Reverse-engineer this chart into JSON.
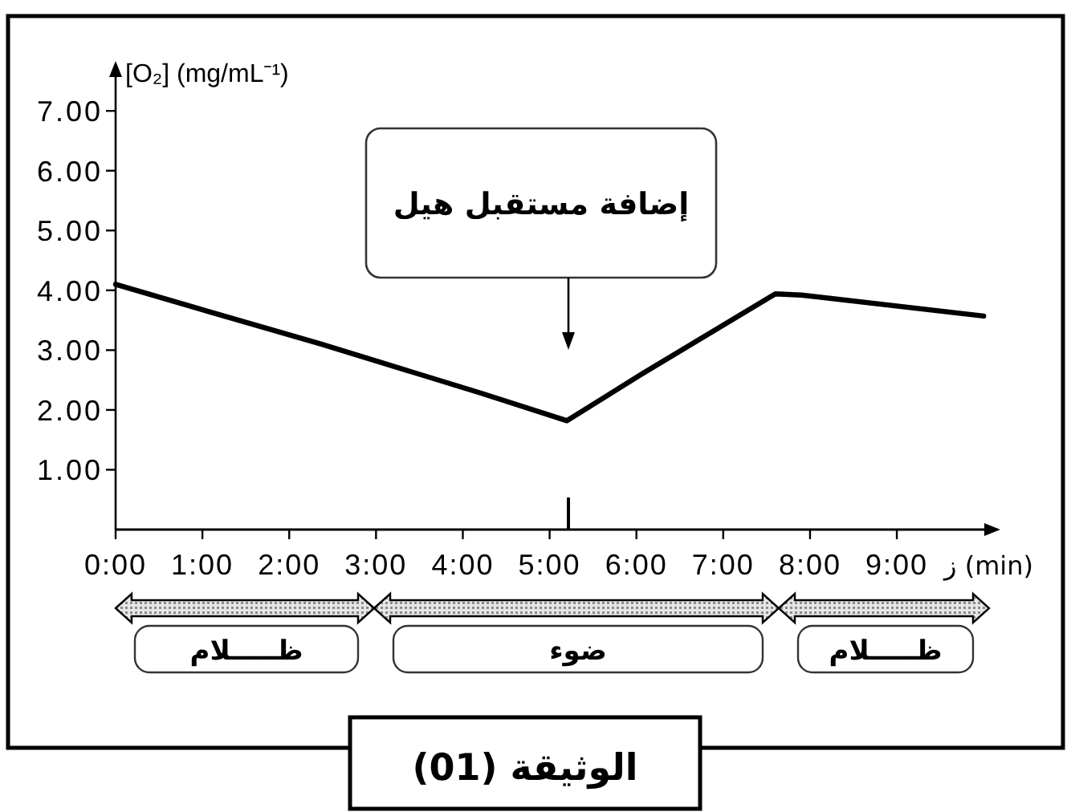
{
  "chart_data": {
    "type": "line",
    "ylabel": "[O₂] (mg/mL⁻¹)",
    "xlabel": "ز (min)",
    "x": [
      0,
      1.13,
      2.37,
      4.21,
      5.2,
      6.06,
      7.6,
      7.9,
      10.0
    ],
    "series": [
      {
        "color": "#000000",
        "values": [
          4.1,
          3.62,
          3.1,
          2.28,
          1.82,
          2.6,
          3.94,
          3.92,
          3.57
        ]
      }
    ],
    "xlim": [
      0,
      10.1
    ],
    "ylim": [
      0,
      7.7
    ],
    "xticks": [
      {
        "value": 0,
        "label": "0:00"
      },
      {
        "value": 1,
        "label": "1:00"
      },
      {
        "value": 2,
        "label": "2:00"
      },
      {
        "value": 3,
        "label": "3:00"
      },
      {
        "value": 4,
        "label": "4:00"
      },
      {
        "value": 5,
        "label": "5:00"
      },
      {
        "value": 6,
        "label": "6:00"
      },
      {
        "value": 7,
        "label": "7:00"
      },
      {
        "value": 8,
        "label": "8:00"
      },
      {
        "value": 9,
        "label": "9:00"
      }
    ],
    "yticks": [
      {
        "value": 1,
        "label": "1.00"
      },
      {
        "value": 2,
        "label": "2.00"
      },
      {
        "value": 3,
        "label": "3.00"
      },
      {
        "value": 4,
        "label": "4.00"
      },
      {
        "value": 5,
        "label": "5.00"
      },
      {
        "value": 6,
        "label": "6.00"
      },
      {
        "value": 7,
        "label": "7.00"
      }
    ],
    "annotations": [
      "إضافة مستقبل هيل",
      "ظـــــلام",
      "ضوء",
      "ظـــــلام",
      "الوثيقة (01)"
    ],
    "line_style": "solid"
  }
}
